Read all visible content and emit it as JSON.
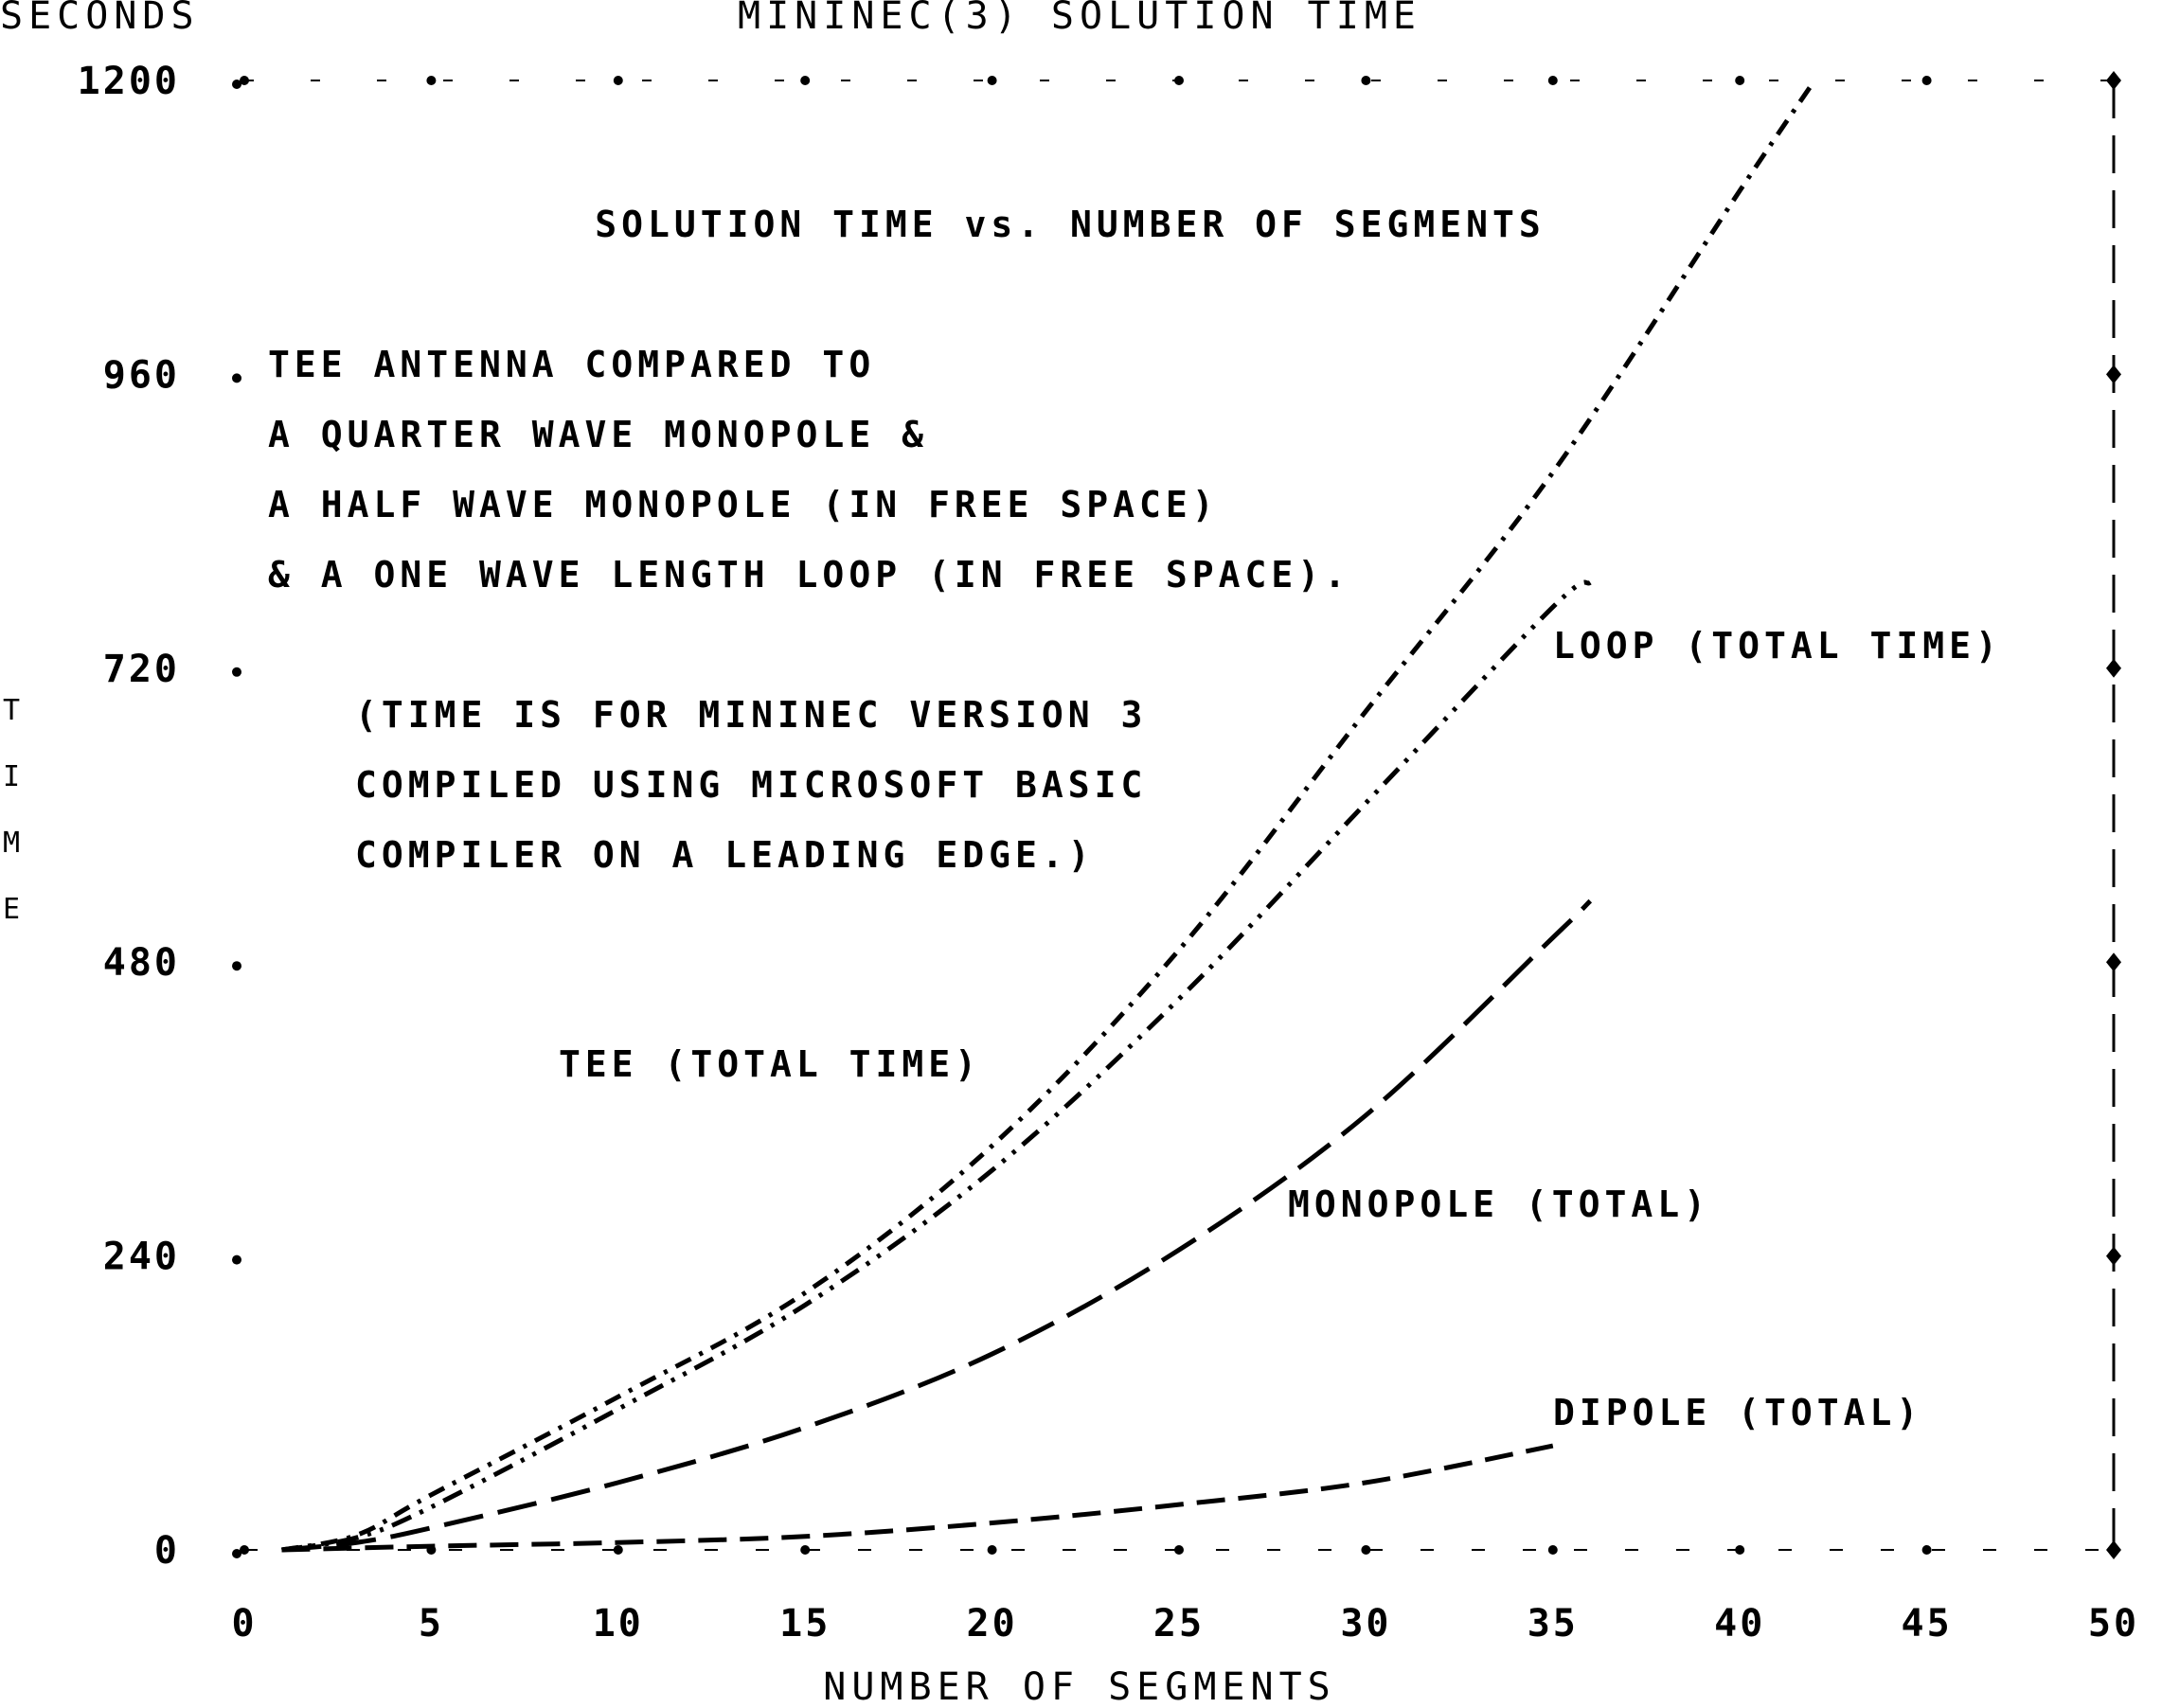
{
  "chart_data": {
    "type": "line",
    "title": "MININEC(3) SOLUTION TIME",
    "y_unit_label": "SECONDS",
    "ylabel": "TIME",
    "xlabel": "NUMBER OF SEGMENTS",
    "subtitle": "SOLUTION TIME vs. NUMBER OF SEGMENTS",
    "notes": [
      "TEE ANTENNA COMPARED TO",
      "A QUARTER WAVE MONOPOLE &",
      "A HALF WAVE MONOPOLE (IN FREE SPACE)",
      "& A ONE WAVE LENGTH LOOP (IN FREE SPACE)."
    ],
    "notes2": [
      "(TIME IS FOR MININEC VERSION 3",
      "COMPILED USING MICROSOFT BASIC",
      "COMPILER ON A LEADING EDGE.)"
    ],
    "xlim": [
      0,
      50
    ],
    "ylim": [
      0,
      1200
    ],
    "xticks": [
      "0",
      "5",
      "10",
      "15",
      "20",
      "25",
      "30",
      "35",
      "40",
      "45",
      "50"
    ],
    "yticks": [
      "0",
      "240",
      "480",
      "720",
      "960",
      "1200"
    ],
    "grid": false,
    "series": [
      {
        "name": "TEE (TOTAL TIME)",
        "dash": "18 10 4 10",
        "x": [
          1,
          3,
          5,
          10,
          15,
          20,
          25,
          30,
          35,
          40,
          42
        ],
        "y": [
          0,
          12,
          45,
          125,
          210,
          330,
          490,
          685,
          880,
          1110,
          1200
        ]
      },
      {
        "name": "LOOP (TOTAL TIME)",
        "dash": "22 10 4 10 4 10",
        "x": [
          1,
          3,
          5,
          10,
          15,
          20,
          25,
          30,
          35,
          36
        ],
        "y": [
          0,
          10,
          35,
          115,
          200,
          310,
          450,
          610,
          770,
          790
        ]
      },
      {
        "name": "MONOPOLE (TOTAL)",
        "dash": "42 16",
        "x": [
          1,
          3,
          5,
          10,
          15,
          20,
          25,
          30,
          35,
          36
        ],
        "y": [
          0,
          6,
          18,
          55,
          100,
          160,
          245,
          355,
          500,
          530
        ]
      },
      {
        "name": "DIPOLE (TOTAL)",
        "dash": "30 14",
        "x": [
          1,
          5,
          10,
          15,
          20,
          25,
          30,
          35
        ],
        "y": [
          0,
          3,
          6,
          11,
          22,
          37,
          55,
          85
        ]
      }
    ]
  }
}
